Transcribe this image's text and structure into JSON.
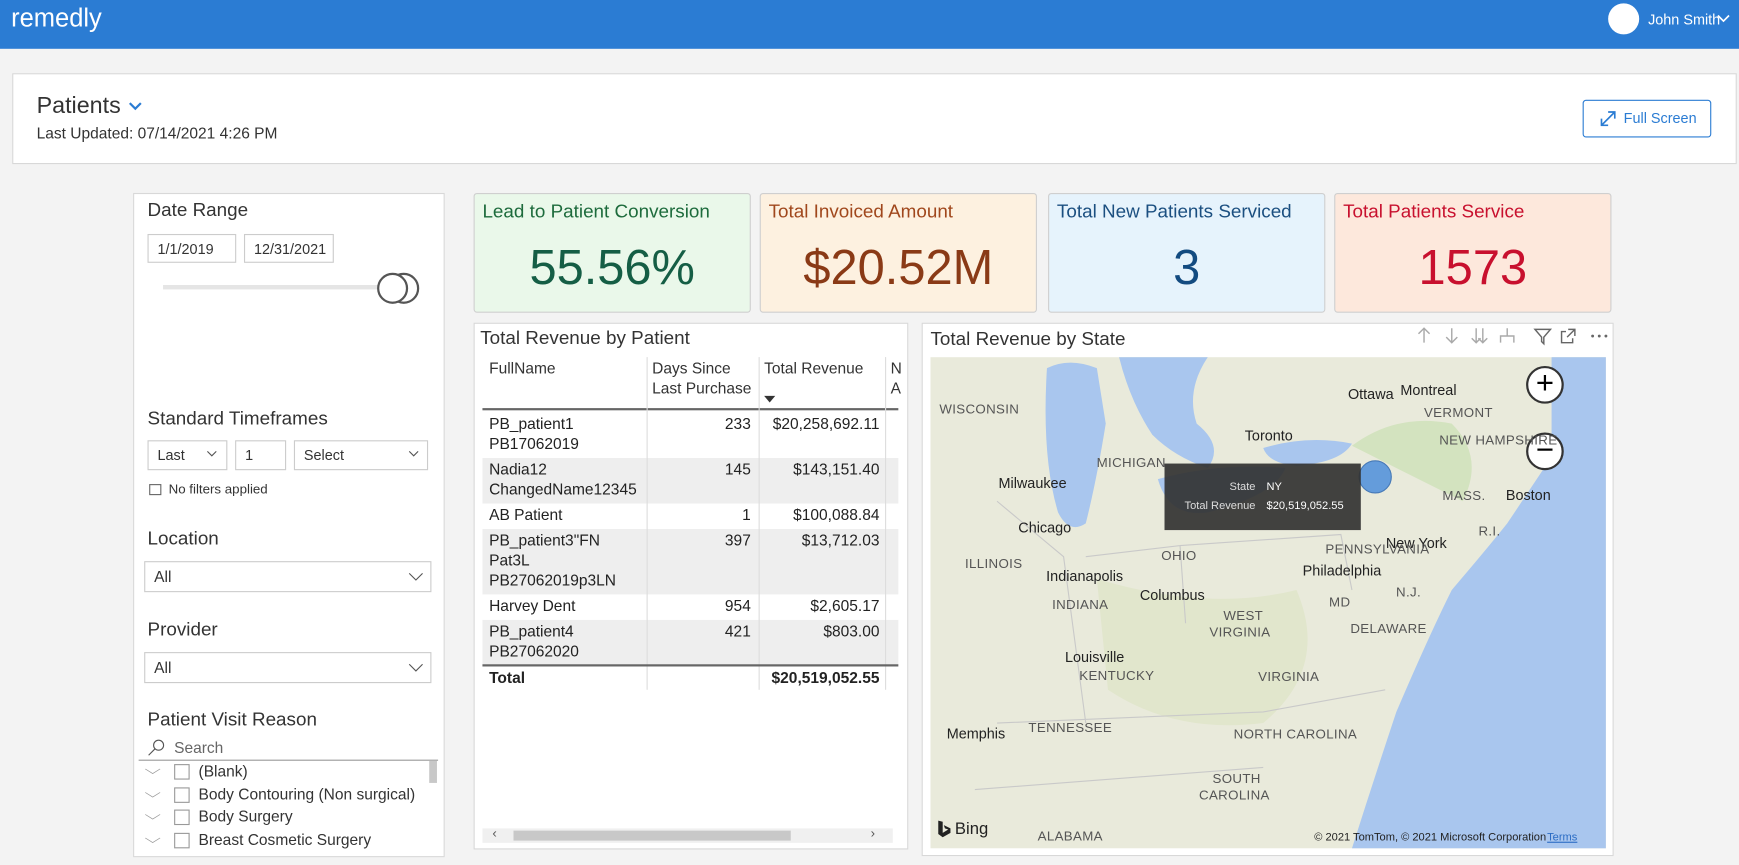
{
  "topbar": {
    "logo": "remedly",
    "user": "John Smith"
  },
  "header": {
    "title": "Patients",
    "updated": "Last Updated: 07/14/2021 4:26 PM",
    "button": "Full Screen"
  },
  "filters": {
    "date_range": {
      "title": "Date Range",
      "start": "1/1/2019",
      "end": "12/31/2021"
    },
    "timeframes": {
      "title": "Standard Timeframes",
      "mode": "Last",
      "count": "1",
      "unit": "Select",
      "status": "No filters applied"
    },
    "location": {
      "title": "Location",
      "value": "All"
    },
    "provider": {
      "title": "Provider",
      "value": "All"
    },
    "visit_reason": {
      "title": "Patient Visit Reason",
      "search": "Search",
      "items": [
        "(Blank)",
        "Body Contouring (Non surgical)",
        "Body Surgery",
        "Breast Cosmetic Surgery"
      ]
    }
  },
  "kpis": [
    {
      "title": "Lead to Patient Conversion",
      "value": "55.56%"
    },
    {
      "title": "Total Invoiced Amount",
      "value": "$20.52M"
    },
    {
      "title": "Total New Patients Serviced",
      "value": "3"
    },
    {
      "title": "Total Patients Service",
      "value": "1573"
    }
  ],
  "table": {
    "title": "Total Revenue by Patient",
    "columns": [
      [
        "FullName"
      ],
      [
        "Days Since",
        "Last Purchase"
      ],
      [
        "Total Revenue"
      ],
      [
        "N",
        "A"
      ]
    ],
    "rows": [
      [
        [
          "PB_patient1",
          "PB17062019"
        ],
        233,
        "$20,258,692.11"
      ],
      [
        [
          "Nadia12",
          "ChangedName12345"
        ],
        145,
        "$143,151.40"
      ],
      [
        [
          "AB Patient"
        ],
        1,
        "$100,088.84"
      ],
      [
        [
          "PB_patient3\"FN",
          "Pat3L",
          "PB27062019p3LN"
        ],
        397,
        "$13,712.03"
      ],
      [
        [
          "Harvey Dent"
        ],
        954,
        "$2,605.17"
      ],
      [
        [
          "PB_patient4",
          "PB27062020"
        ],
        421,
        "$803.00"
      ]
    ],
    "total": [
      "Total",
      "$20,519,052.55"
    ]
  },
  "map": {
    "title": "Total Revenue by State",
    "tooltip": {
      "state_label": "State",
      "state": "NY",
      "revenue_label": "Total Revenue",
      "revenue": "$20,519,052.55"
    },
    "labels": [
      "WISCONSIN",
      "MICHIGAN",
      "Milwaukee",
      "Chicago",
      "Toronto",
      "Ottawa",
      "Montreal",
      "VERMONT",
      "NEW HAMPSHIRE",
      "MASS.",
      "Boston",
      "R.I.",
      "New York",
      "PENNSYLVANIA",
      "Philadelphia",
      "N.J.",
      "DELAWARE",
      "MD",
      "OHIO",
      "ILLINOIS",
      "Indianapolis",
      "INDIANA",
      "Columbus",
      "WEST",
      "VIRGINIA",
      "Louisville",
      "KENTUCKY",
      "VIRGINIA",
      "Memphis",
      "TENNESSEE",
      "NORTH CAROLINA",
      "SOUTH",
      "CAROLINA",
      "ALABAMA"
    ],
    "brand": "Bing",
    "copyright": "© 2021 TomTom, © 2021 Microsoft Corporation",
    "terms": "Terms"
  }
}
